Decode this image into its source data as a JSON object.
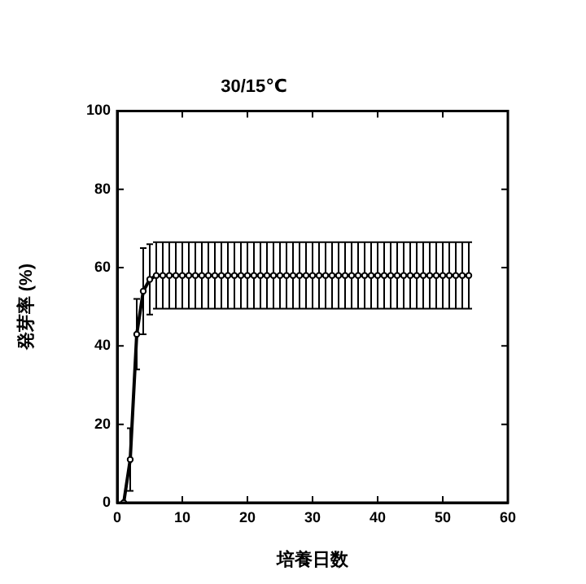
{
  "chart_data": {
    "type": "line",
    "title": "30/15℃",
    "xlabel": "培養日数",
    "ylabel": "発芽率 (%)",
    "x": [
      1,
      2,
      3,
      4,
      5,
      6,
      7,
      8,
      9,
      10,
      11,
      12,
      13,
      14,
      15,
      16,
      17,
      18,
      19,
      20,
      21,
      22,
      23,
      24,
      25,
      26,
      27,
      28,
      29,
      30,
      31,
      32,
      33,
      34,
      35,
      36,
      37,
      38,
      39,
      40,
      41,
      42,
      43,
      44,
      45,
      46,
      47,
      48,
      49,
      50,
      51,
      52,
      53,
      54
    ],
    "series": [
      {
        "color": "#000000",
        "values": [
          0,
          11,
          43,
          54,
          57,
          58,
          58,
          58,
          58,
          58,
          58,
          58,
          58,
          58,
          58,
          58,
          58,
          58,
          58,
          58,
          58,
          58,
          58,
          58,
          58,
          58,
          58,
          58,
          58,
          58,
          58,
          58,
          58,
          58,
          58,
          58,
          58,
          58,
          58,
          58,
          58,
          58,
          58,
          58,
          58,
          58,
          58,
          58,
          58,
          58,
          58,
          58,
          58,
          58
        ],
        "errors": [
          null,
          8,
          9,
          11,
          9,
          8.5,
          8.5,
          8.5,
          8.5,
          8.5,
          8.5,
          8.5,
          8.5,
          8.5,
          8.5,
          8.5,
          8.5,
          8.5,
          8.5,
          8.5,
          8.5,
          8.5,
          8.5,
          8.5,
          8.5,
          8.5,
          8.5,
          8.5,
          8.5,
          8.5,
          8.5,
          8.5,
          8.5,
          8.5,
          8.5,
          8.5,
          8.5,
          8.5,
          8.5,
          8.5,
          8.5,
          8.5,
          8.5,
          8.5,
          8.5,
          8.5,
          8.5,
          8.5,
          8.5,
          8.5,
          8.5,
          8.5,
          8.5,
          8.5
        ]
      }
    ],
    "xlim": [
      0,
      60
    ],
    "xticks": [
      0,
      10,
      20,
      30,
      40,
      50,
      60
    ],
    "ylim": [
      0,
      100
    ],
    "yticks": [
      0,
      20,
      40,
      60,
      80,
      100
    ],
    "grid": false,
    "legend": false,
    "marker": "circle",
    "line_style": "solid"
  }
}
